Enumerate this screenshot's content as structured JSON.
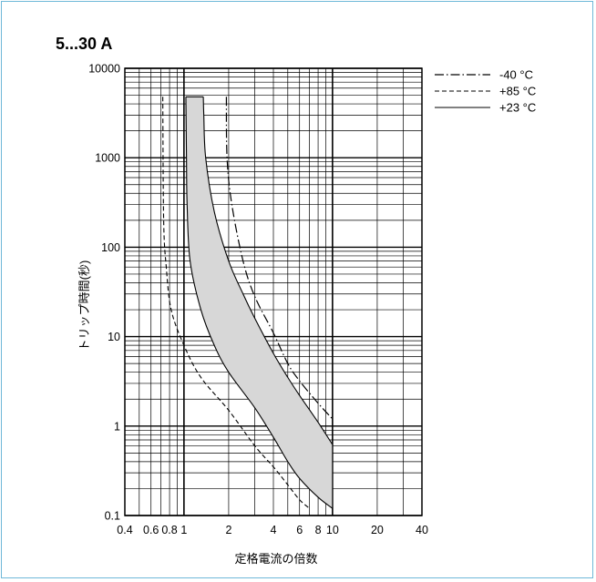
{
  "chart_data": {
    "type": "line",
    "title": "5...30 A",
    "xlabel": "定格電流の倍数",
    "ylabel": "トリップ時間(秒)",
    "x_scale": "log",
    "y_scale": "log",
    "xlim": [
      0.4,
      40
    ],
    "ylim": [
      0.1,
      10000
    ],
    "grid": true,
    "legend_position": "top-right, outside plot",
    "x_ticks": [
      {
        "value": 0.4,
        "label": "0.4"
      },
      {
        "value": 0.6,
        "label": "0.6"
      },
      {
        "value": 0.8,
        "label": "0.8"
      },
      {
        "value": 1,
        "label": "1"
      },
      {
        "value": 2,
        "label": "2"
      },
      {
        "value": 4,
        "label": "4"
      },
      {
        "value": 6,
        "label": "6"
      },
      {
        "value": 8,
        "label": "8"
      },
      {
        "value": 10,
        "label": "10"
      },
      {
        "value": 20,
        "label": "20"
      },
      {
        "value": 40,
        "label": "40"
      }
    ],
    "y_ticks": [
      {
        "value": 0.1,
        "label": "0.1"
      },
      {
        "value": 1,
        "label": "1"
      },
      {
        "value": 10,
        "label": "10"
      },
      {
        "value": 100,
        "label": "100"
      },
      {
        "value": 1000,
        "label": "1000"
      },
      {
        "value": 10000,
        "label": "10000"
      }
    ],
    "series": [
      {
        "name": "-40 °C",
        "style": "dash-dot",
        "points": [
          [
            1.93,
            4800
          ],
          [
            1.95,
            1000
          ],
          [
            2.1,
            300
          ],
          [
            2.5,
            70
          ],
          [
            3,
            28
          ],
          [
            4,
            11
          ],
          [
            5,
            5
          ],
          [
            6,
            3.2
          ],
          [
            8,
            1.8
          ],
          [
            10,
            1.2
          ]
        ]
      },
      {
        "name": "+85 °C",
        "style": "dashed",
        "points": [
          [
            0.72,
            4800
          ],
          [
            0.73,
            200
          ],
          [
            0.76,
            60
          ],
          [
            0.82,
            20
          ],
          [
            1,
            8
          ],
          [
            1.3,
            3.5
          ],
          [
            2,
            1.5
          ],
          [
            3,
            0.6
          ],
          [
            4,
            0.35
          ],
          [
            5,
            0.22
          ],
          [
            6,
            0.15
          ],
          [
            7,
            0.12
          ]
        ]
      },
      {
        "name": "+23 °C",
        "style": "solid-band",
        "upper": [
          [
            1.35,
            4800
          ],
          [
            1.36,
            3000
          ],
          [
            1.4,
            1000
          ],
          [
            1.6,
            250
          ],
          [
            2,
            70
          ],
          [
            2.5,
            30
          ],
          [
            3,
            16
          ],
          [
            4,
            6.5
          ],
          [
            5,
            3.5
          ],
          [
            6,
            2.2
          ],
          [
            8,
            1.1
          ],
          [
            10,
            0.62
          ]
        ],
        "lower": [
          [
            1.03,
            4800
          ],
          [
            1.04,
            1000
          ],
          [
            1.05,
            300
          ],
          [
            1.1,
            70
          ],
          [
            1.3,
            20
          ],
          [
            1.6,
            8
          ],
          [
            2,
            4
          ],
          [
            3,
            1.6
          ],
          [
            4,
            0.75
          ],
          [
            5,
            0.4
          ],
          [
            6,
            0.26
          ],
          [
            8,
            0.16
          ],
          [
            10,
            0.12
          ]
        ],
        "fill": "#d7d7d7"
      }
    ]
  },
  "colors": {
    "frame_border": "#6fb8d8",
    "band_fill": "#d7d7d7",
    "line": "#000000"
  }
}
